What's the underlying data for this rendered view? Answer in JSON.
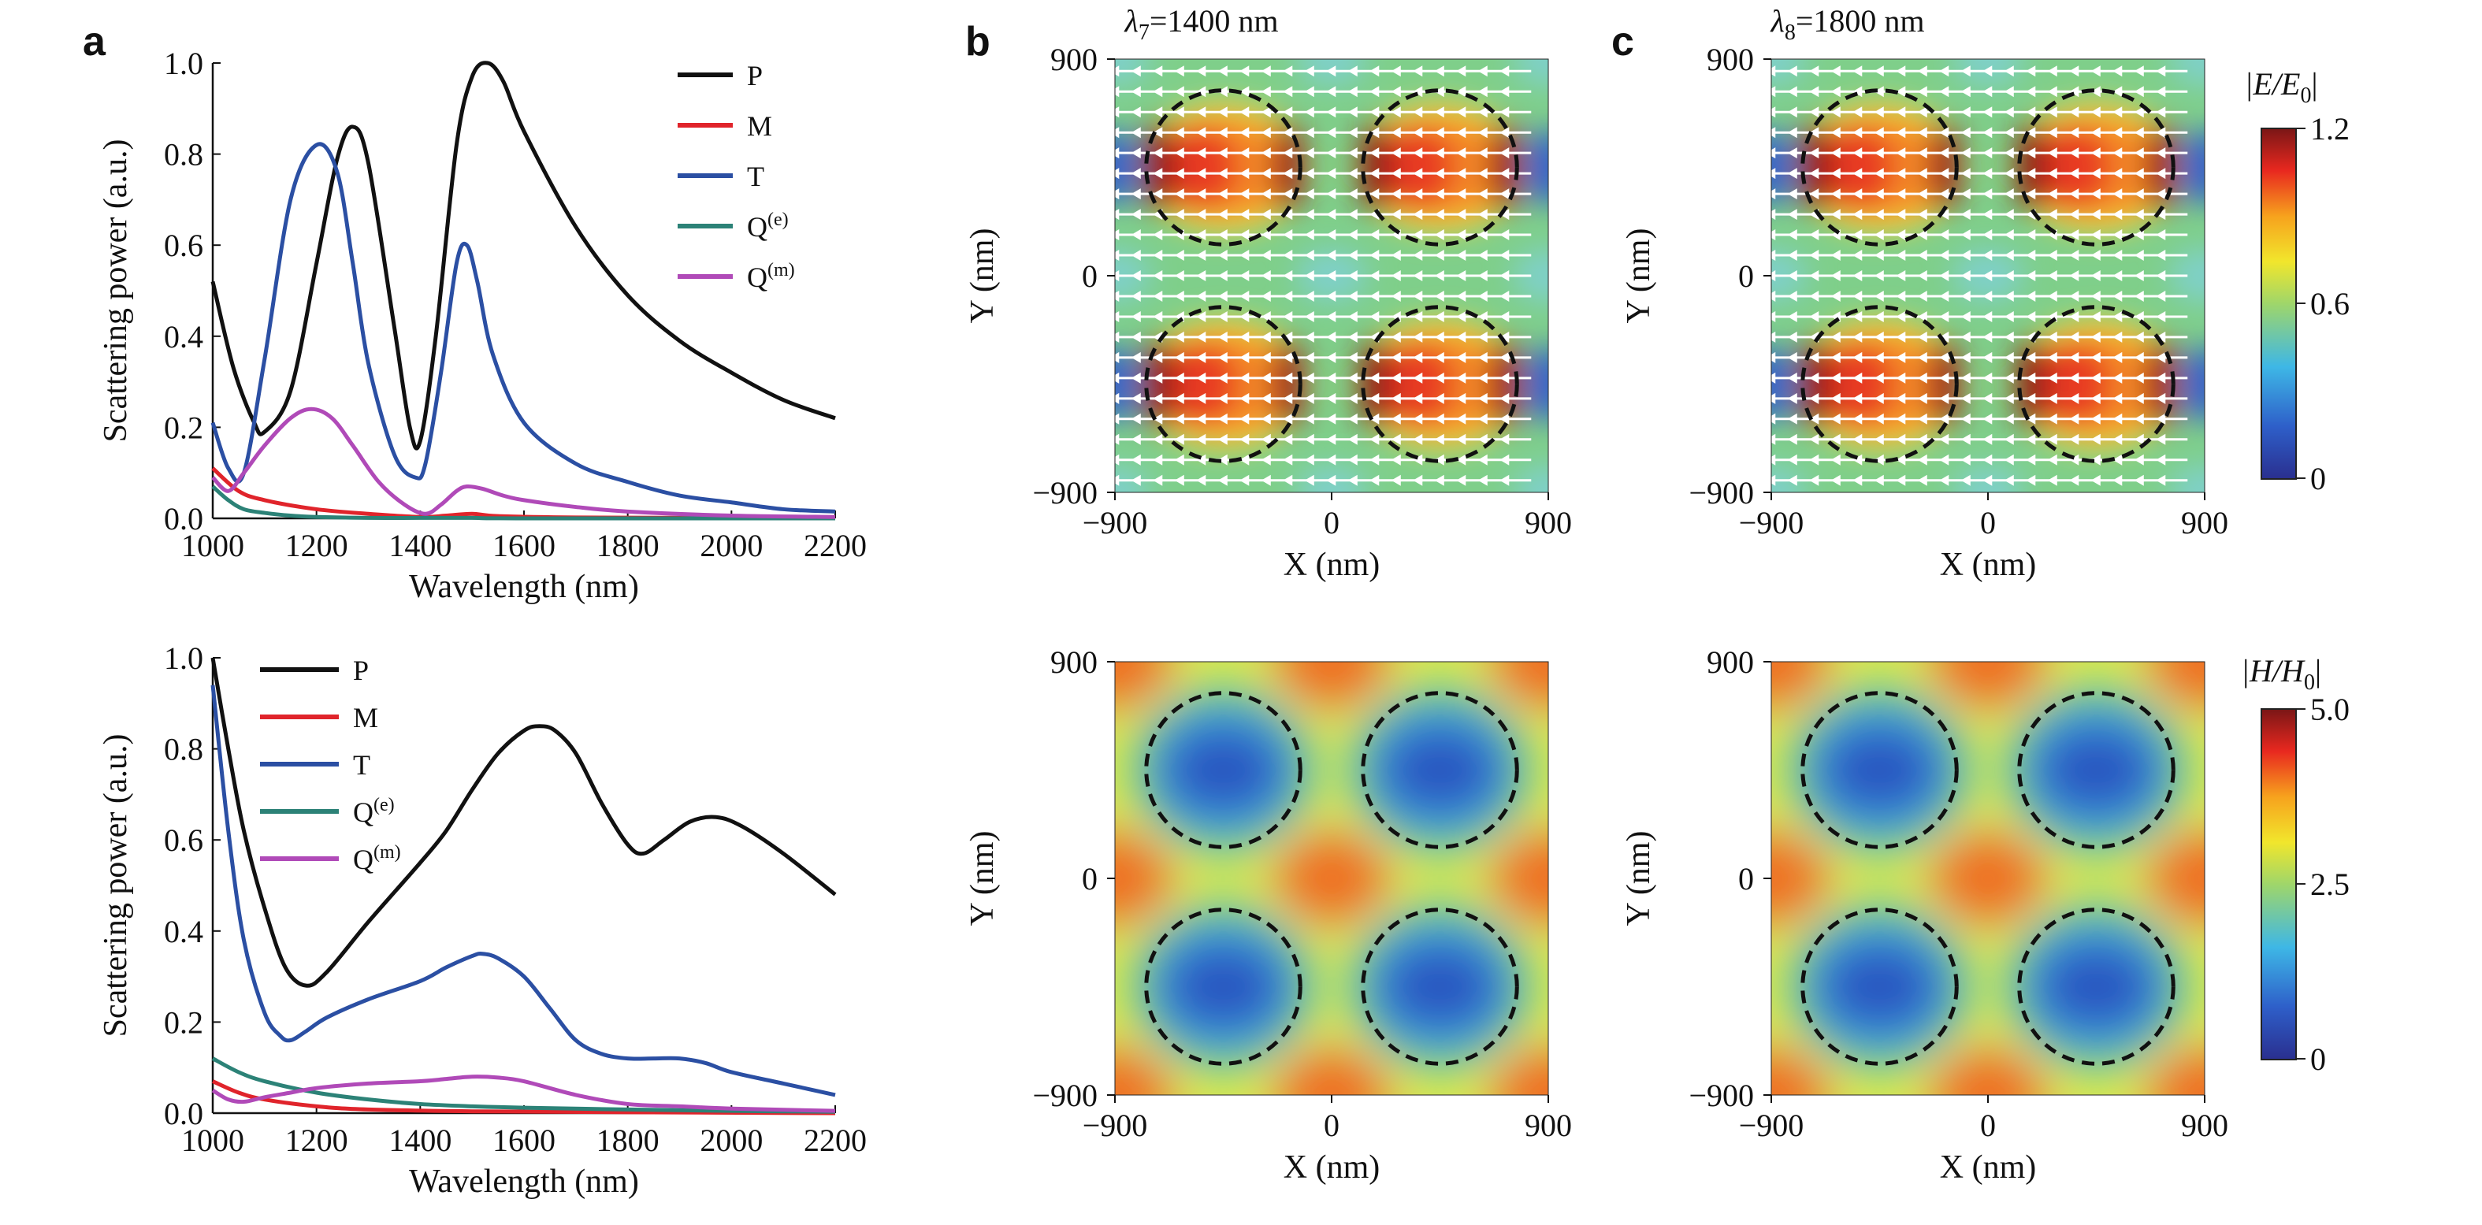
{
  "panel_letters": [
    "a",
    "b",
    "c"
  ],
  "spectra_common": {
    "xlabel": "Wavelength (nm)",
    "ylabel": "Scattering power (a.u.)",
    "xlim": [
      1000,
      2200
    ],
    "ylim": [
      0,
      1.0
    ],
    "xticks": [
      "1000",
      "1200",
      "1400",
      "1600",
      "1800",
      "2000",
      "2200"
    ],
    "yticks": [
      "0.0",
      "0.2",
      "0.4",
      "0.6",
      "0.8",
      "1.0"
    ]
  },
  "colors": {
    "P": "#111111",
    "M": "#e0242b",
    "T": "#2b4fa3",
    "Qe": "#2c8277",
    "Qm": "#b04ab8"
  },
  "field_common": {
    "xlabel": "X (nm)",
    "ylabel": "Y (nm)",
    "xticks": [
      "−900",
      "0",
      "900"
    ],
    "yticks": [
      "900",
      "0",
      "−900"
    ]
  },
  "headers": {
    "b": {
      "sym": "λ",
      "sub": "7",
      "rest": "=1400 nm"
    },
    "c": {
      "sym": "λ",
      "sub": "8",
      "rest": "=1800 nm"
    }
  },
  "colorbars": {
    "E": {
      "label": "|E/E",
      "label_sub": "0",
      "label_end": "|",
      "ticks": [
        "1.2",
        "0.6",
        "0"
      ]
    },
    "H": {
      "label": "|H/H",
      "label_sub": "0",
      "label_end": "|",
      "ticks": [
        "5.0",
        "2.5",
        "0"
      ]
    }
  },
  "chart_data": [
    {
      "type": "line",
      "panel": "a-top",
      "xlabel": "Wavelength (nm)",
      "ylabel": "Scattering power (a.u.)",
      "xlim": [
        1000,
        2200
      ],
      "ylim": [
        0,
        1.0
      ],
      "legend_position": "top-right",
      "series": [
        {
          "name": "P",
          "key": "P",
          "label_base": "P",
          "label_sup": "",
          "x": [
            1000,
            1040,
            1080,
            1100,
            1150,
            1200,
            1240,
            1270,
            1300,
            1350,
            1380,
            1400,
            1430,
            1470,
            1500,
            1530,
            1560,
            1600,
            1700,
            1800,
            1900,
            2000,
            2100,
            2200
          ],
          "y": [
            0.52,
            0.33,
            0.21,
            0.19,
            0.28,
            0.56,
            0.79,
            0.86,
            0.78,
            0.42,
            0.2,
            0.17,
            0.4,
            0.82,
            0.97,
            1.0,
            0.96,
            0.85,
            0.64,
            0.49,
            0.39,
            0.32,
            0.26,
            0.22
          ]
        },
        {
          "name": "M",
          "key": "M",
          "label_base": "M",
          "label_sup": "",
          "x": [
            1000,
            1050,
            1100,
            1200,
            1300,
            1400,
            1450,
            1500,
            1550,
            1700,
            2000,
            2200
          ],
          "y": [
            0.11,
            0.06,
            0.04,
            0.02,
            0.01,
            0.003,
            0.006,
            0.01,
            0.005,
            0.002,
            0.001,
            0.0
          ]
        },
        {
          "name": "T",
          "key": "T",
          "label_base": "T",
          "label_sup": "",
          "x": [
            1000,
            1030,
            1060,
            1100,
            1150,
            1200,
            1240,
            1270,
            1300,
            1350,
            1390,
            1410,
            1440,
            1470,
            1490,
            1510,
            1540,
            1600,
            1700,
            1800,
            1900,
            2000,
            2100,
            2200
          ],
          "y": [
            0.21,
            0.11,
            0.1,
            0.35,
            0.7,
            0.82,
            0.76,
            0.56,
            0.34,
            0.14,
            0.09,
            0.12,
            0.32,
            0.56,
            0.6,
            0.52,
            0.36,
            0.21,
            0.12,
            0.08,
            0.05,
            0.035,
            0.02,
            0.015
          ]
        },
        {
          "name": "Q(e)",
          "key": "Qe",
          "label_base": "Q",
          "label_sup": "(e)",
          "x": [
            1000,
            1030,
            1060,
            1100,
            1150,
            1200,
            1300,
            1400,
            1500,
            1600,
            2200
          ],
          "y": [
            0.07,
            0.04,
            0.02,
            0.012,
            0.006,
            0.003,
            0.001,
            0.001,
            0.001,
            0.0,
            0.0
          ]
        },
        {
          "name": "Q(m)",
          "key": "Qm",
          "label_base": "Q",
          "label_sup": "(m)",
          "x": [
            1000,
            1030,
            1060,
            1100,
            1150,
            1190,
            1230,
            1270,
            1320,
            1370,
            1410,
            1440,
            1470,
            1490,
            1520,
            1560,
            1600,
            1700,
            1800,
            2000,
            2200
          ],
          "y": [
            0.09,
            0.06,
            0.1,
            0.16,
            0.22,
            0.24,
            0.22,
            0.16,
            0.08,
            0.03,
            0.01,
            0.03,
            0.06,
            0.07,
            0.065,
            0.05,
            0.04,
            0.025,
            0.015,
            0.006,
            0.003
          ]
        }
      ]
    },
    {
      "type": "line",
      "panel": "a-bottom",
      "xlabel": "Wavelength (nm)",
      "ylabel": "Scattering power (a.u.)",
      "xlim": [
        1000,
        2200
      ],
      "ylim": [
        0,
        1.0
      ],
      "legend_position": "top-left",
      "series": [
        {
          "name": "P",
          "key": "P",
          "label_base": "P",
          "label_sup": "",
          "x": [
            1000,
            1030,
            1060,
            1100,
            1140,
            1180,
            1220,
            1300,
            1400,
            1450,
            1500,
            1550,
            1600,
            1630,
            1660,
            1700,
            1750,
            1800,
            1830,
            1870,
            1920,
            1970,
            2020,
            2100,
            2200
          ],
          "y": [
            1.0,
            0.8,
            0.62,
            0.45,
            0.32,
            0.28,
            0.31,
            0.42,
            0.55,
            0.62,
            0.71,
            0.79,
            0.84,
            0.85,
            0.84,
            0.79,
            0.68,
            0.59,
            0.57,
            0.6,
            0.64,
            0.65,
            0.63,
            0.57,
            0.48
          ]
        },
        {
          "name": "M",
          "key": "M",
          "label_base": "M",
          "label_sup": "",
          "x": [
            1000,
            1050,
            1100,
            1200,
            1300,
            1500,
            1800,
            2200
          ],
          "y": [
            0.07,
            0.045,
            0.03,
            0.015,
            0.008,
            0.004,
            0.002,
            0.0
          ]
        },
        {
          "name": "T",
          "key": "T",
          "label_base": "T",
          "label_sup": "",
          "x": [
            1000,
            1030,
            1060,
            1100,
            1130,
            1150,
            1180,
            1220,
            1300,
            1400,
            1450,
            1500,
            1520,
            1550,
            1600,
            1650,
            1700,
            1750,
            1800,
            1850,
            1900,
            1950,
            2000,
            2100,
            2200
          ],
          "y": [
            0.94,
            0.62,
            0.38,
            0.22,
            0.17,
            0.16,
            0.18,
            0.21,
            0.25,
            0.29,
            0.32,
            0.345,
            0.35,
            0.34,
            0.3,
            0.23,
            0.16,
            0.13,
            0.12,
            0.12,
            0.12,
            0.11,
            0.09,
            0.065,
            0.04
          ]
        },
        {
          "name": "Q(e)",
          "key": "Qe",
          "label_base": "Q",
          "label_sup": "(e)",
          "x": [
            1000,
            1050,
            1100,
            1200,
            1300,
            1400,
            1500,
            1600,
            1800,
            2000,
            2200
          ],
          "y": [
            0.12,
            0.09,
            0.07,
            0.045,
            0.03,
            0.02,
            0.015,
            0.012,
            0.008,
            0.005,
            0.003
          ]
        },
        {
          "name": "Q(m)",
          "key": "Qm",
          "label_base": "Q",
          "label_sup": "(m)",
          "x": [
            1000,
            1030,
            1060,
            1100,
            1150,
            1200,
            1300,
            1400,
            1450,
            1500,
            1550,
            1600,
            1700,
            1800,
            1900,
            2000,
            2200
          ],
          "y": [
            0.05,
            0.03,
            0.025,
            0.035,
            0.045,
            0.055,
            0.065,
            0.07,
            0.075,
            0.08,
            0.078,
            0.07,
            0.04,
            0.02,
            0.015,
            0.01,
            0.005
          ]
        }
      ]
    },
    {
      "type": "heatmap",
      "panel": "b-top",
      "field": "E",
      "xlabel": "X (nm)",
      "ylabel": "Y (nm)",
      "xlim": [
        -900,
        900
      ],
      "ylim": [
        -900,
        900
      ],
      "colorbar": "E",
      "vmax": 1.2,
      "circle_centers": [
        [
          -450,
          450
        ],
        [
          450,
          450
        ],
        [
          -450,
          -450
        ],
        [
          450,
          -450
        ]
      ],
      "circle_radius": 320,
      "arrows": true
    },
    {
      "type": "heatmap",
      "panel": "c-top",
      "field": "E",
      "xlabel": "X (nm)",
      "ylabel": "Y (nm)",
      "xlim": [
        -900,
        900
      ],
      "ylim": [
        -900,
        900
      ],
      "colorbar": "E",
      "vmax": 1.2,
      "circle_centers": [
        [
          -450,
          450
        ],
        [
          450,
          450
        ],
        [
          -450,
          -450
        ],
        [
          450,
          -450
        ]
      ],
      "circle_radius": 320,
      "arrows": true
    },
    {
      "type": "heatmap",
      "panel": "b-bottom",
      "field": "H",
      "xlabel": "X (nm)",
      "ylabel": "Y (nm)",
      "xlim": [
        -900,
        900
      ],
      "ylim": [
        -900,
        900
      ],
      "colorbar": "H",
      "vmax": 5.0,
      "circle_centers": [
        [
          -450,
          450
        ],
        [
          450,
          450
        ],
        [
          -450,
          -450
        ],
        [
          450,
          -450
        ]
      ],
      "circle_radius": 320,
      "arrows": false
    },
    {
      "type": "heatmap",
      "panel": "c-bottom",
      "field": "H",
      "xlabel": "X (nm)",
      "ylabel": "Y (nm)",
      "xlim": [
        -900,
        900
      ],
      "ylim": [
        -900,
        900
      ],
      "colorbar": "H",
      "vmax": 5.0,
      "circle_centers": [
        [
          -450,
          450
        ],
        [
          450,
          450
        ],
        [
          -450,
          -450
        ],
        [
          450,
          -450
        ]
      ],
      "circle_radius": 320,
      "arrows": false
    }
  ]
}
